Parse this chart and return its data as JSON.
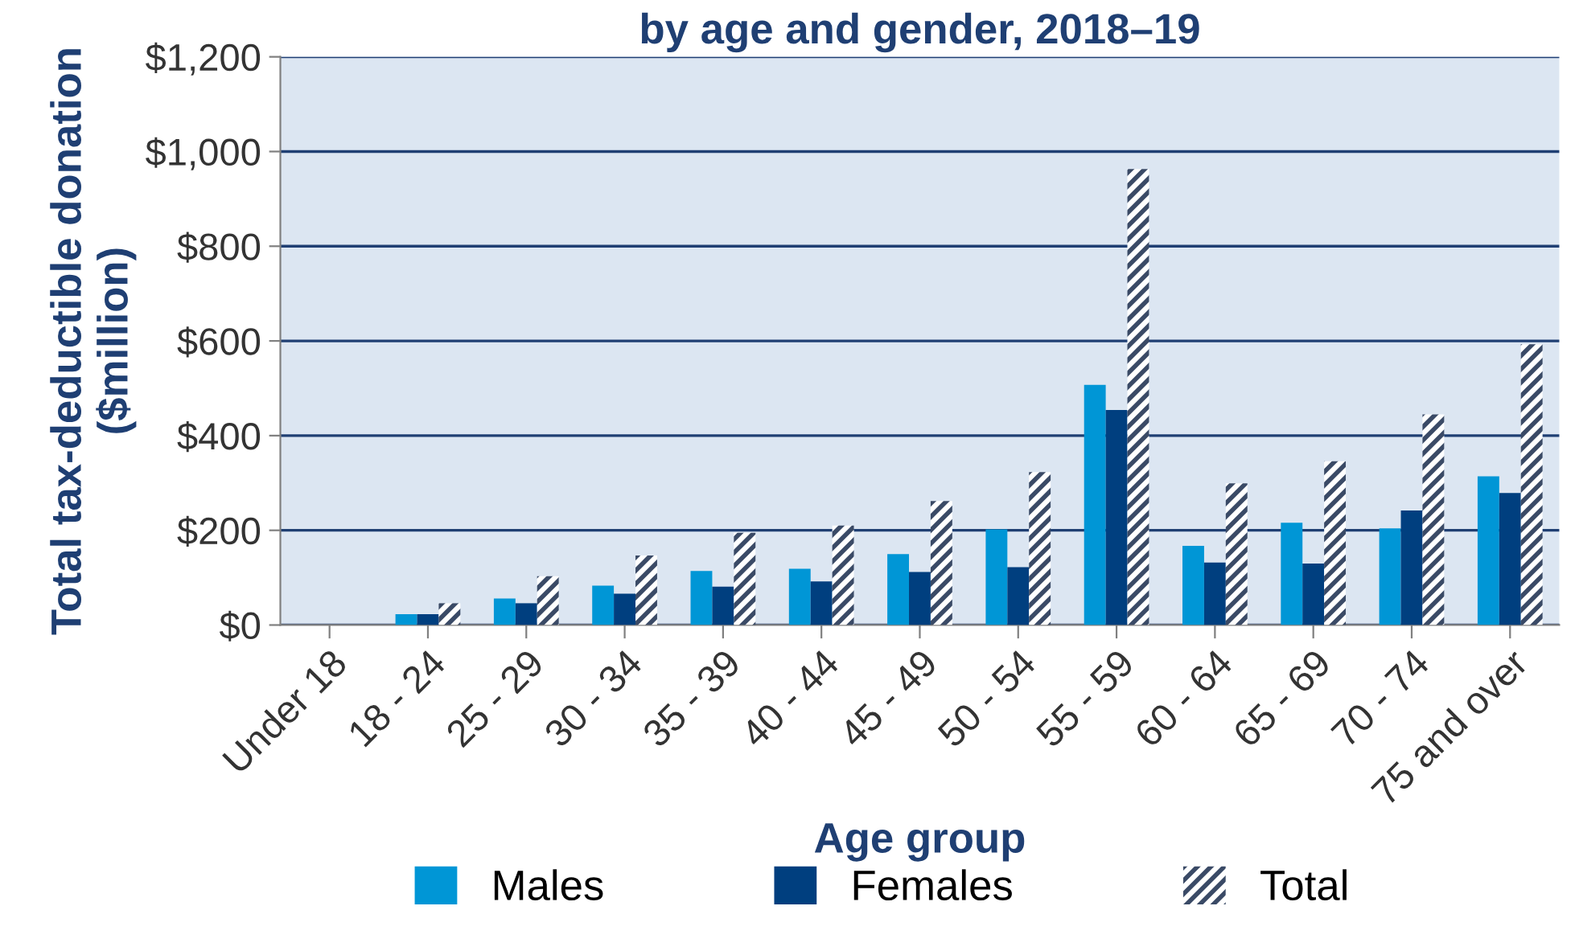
{
  "chart_data": {
    "type": "bar",
    "title": "by age and gender, 2018–19",
    "xlabel": "Age group",
    "ylabel": "Total tax-deductible donation\n($million)",
    "categories": [
      "Under 18",
      "18 - 24",
      "25 - 29",
      "30 - 34",
      "35 - 39",
      "40 - 44",
      "45 - 49",
      "50 - 54",
      "55 - 59",
      "60 - 64",
      "65 - 69",
      "70 - 74",
      "75 and over"
    ],
    "series": [
      {
        "name": "Males",
        "color": "#0096d6",
        "values": [
          0,
          23,
          56,
          83,
          114,
          119,
          150,
          202,
          507,
          167,
          216,
          204,
          314
        ]
      },
      {
        "name": "Females",
        "color": "#003f7f",
        "values": [
          0,
          23,
          46,
          66,
          81,
          92,
          112,
          122,
          454,
          132,
          130,
          242,
          279
        ]
      },
      {
        "name": "Total",
        "color": "#3a4a66",
        "values": [
          0,
          46,
          103,
          147,
          195,
          210,
          262,
          323,
          963,
          299,
          346,
          445,
          593
        ]
      }
    ],
    "ylim": [
      0,
      1200
    ],
    "yticks": [
      {
        "value": 0,
        "label": "$0"
      },
      {
        "value": 200,
        "label": "$200"
      },
      {
        "value": 400,
        "label": "$400"
      },
      {
        "value": 600,
        "label": "$600"
      },
      {
        "value": 800,
        "label": "$800"
      },
      {
        "value": 1000,
        "label": "$1,000"
      },
      {
        "value": 1200,
        "label": "$1,200"
      }
    ],
    "grid": "y",
    "legend": "bottom"
  }
}
